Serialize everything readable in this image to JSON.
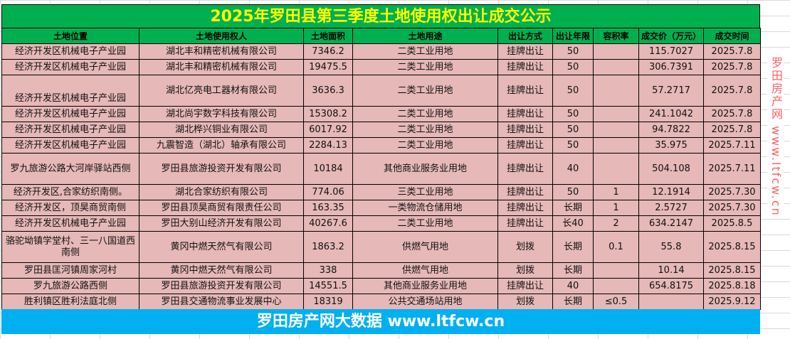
{
  "title": "2025年罗田县第三季度土地使用权出让成交公示",
  "headers": [
    "土地位置",
    "土地使用权人",
    "土地面积",
    "土地用途",
    "出让方式",
    "出让年限",
    "容积率",
    "成交价（万元）",
    "成交时间"
  ],
  "rows": [
    [
      "经济开发区机械电子产业园",
      "湖北丰和精密机械有限公司",
      "7346.2",
      "二类工业用地",
      "挂牌出让",
      "50",
      "",
      "115.7027",
      "2025.7.8"
    ],
    [
      "经济开发区机械电子产业园",
      "湖北丰和精密机械有限公司",
      "19475.5",
      "二类工业用地",
      "挂牌出让",
      "50",
      "",
      "306.7391",
      "2025.7.8"
    ],
    [
      "经济开发区机械电子产业园",
      "湖北亿亮电工器材有限公司",
      "3636.3",
      "二类工业用地",
      "挂牌出让",
      "50",
      "",
      "57.2717",
      "2025.7.8"
    ],
    [
      "经济开发区机械电子产业园",
      "湖北尚宇数字科技有限公司",
      "15308.2",
      "二类工业用地",
      "挂牌出让",
      "50",
      "",
      "241.1042",
      "2025.7.8"
    ],
    [
      "经济开发区机械电子产业园",
      "湖北桦兴铜业有限公司",
      "6017.92",
      "二类工业用地",
      "挂牌出让",
      "50",
      "",
      "94.7822",
      "2025.7.8"
    ],
    [
      "经济开发区机械电子产业园",
      "九震智造（湖北）轴承有限公司",
      "2284.13",
      "二类工业用地",
      "挂牌出让",
      "50",
      "",
      "35.975",
      "2025.7.11"
    ],
    [
      "罗九旅游公路大河岸驿站西侧",
      "罗田县旅游投资开发有限公司",
      "10184",
      "其他商业服务业用地",
      "挂牌出让",
      "40",
      "",
      "504.108",
      "2025.7.11"
    ],
    [
      "经济开发区,合家纺织南侧。",
      "湖北合家纺织有限公司",
      "774.06",
      "三类工业用地",
      "挂牌出让",
      "50",
      "1",
      "12.1914",
      "2025.7.30"
    ],
    [
      "经济开发区，顶昊商贸南侧",
      "罗田县顶昊商贸有限责任公司",
      "163.35",
      "一类物流仓储用地",
      "挂牌出让",
      "长期",
      "1",
      "2.5727",
      "2025.7.30"
    ],
    [
      "经济开发区机械电子产业园",
      "罗田大别山经济开发有限公司",
      "40267.6",
      "二类工业用地",
      "挂牌出让",
      "长40",
      "2",
      "634.2147",
      "2025.8.5"
    ],
    [
      "骆驼坳镇学堂村、三一八国道西南侧",
      "黄冈中燃天然气有限公司",
      "1863.2",
      "供燃气用地",
      "划拨",
      "长期",
      "0.1",
      "55.8",
      "2025.8.15"
    ],
    [
      "罗田县匡河镇周家河村",
      "黄冈中燃天然气有限公司",
      "338",
      "供燃气用地",
      "划拨",
      "长期",
      "",
      "10.14",
      "2025.8.15"
    ],
    [
      "罗九旅游公路西侧",
      "罗田县旅游投资开发有限公司",
      "14551.5",
      "其他商业服务业用地",
      "挂牌出让",
      "40",
      "",
      "654.8175",
      "2025.8.18"
    ],
    [
      "胜利镇区胜利法庭北侧",
      "罗田县交通物流事业发展中心",
      "18319",
      "公共交通场站用地",
      "划拨",
      "长期",
      "≤0.5",
      "",
      "2025.9.12"
    ]
  ],
  "footer": "罗田房产网大数据 www.ltfcw.cn",
  "watermark": "罗田房产网 www.ltfcw.cn",
  "colors": {
    "title_bg": "#00b050",
    "title_text": "#ffff00",
    "row_bg": "#e6b8b7",
    "footer_bg": "#00b0f0"
  }
}
